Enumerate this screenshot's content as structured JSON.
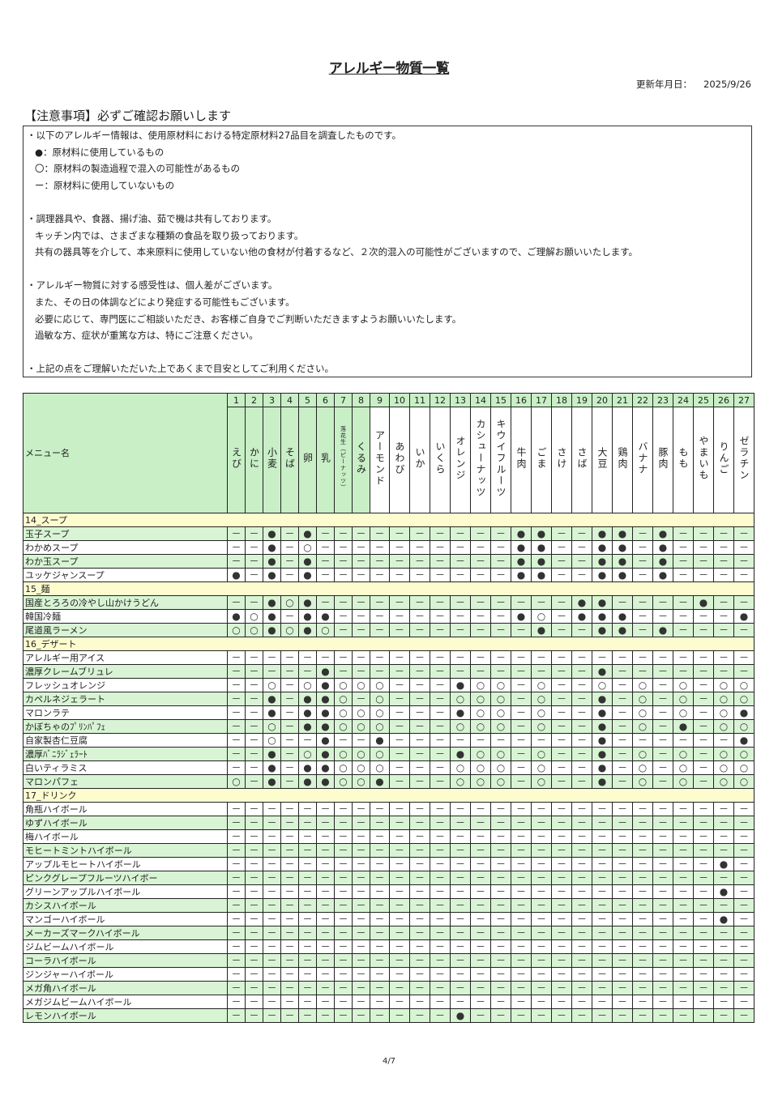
{
  "title": "アレルギー物質一覧",
  "updated_label": "更新年月日：",
  "updated_date": "2025/9/26",
  "notice_heading": "【注意事項】必ずご確認お願いします",
  "notes": [
    {
      "text": "・以下のアレルギー情報は、使用原材料における特定原材料27品目を調査したものです。",
      "indent": false
    },
    {
      "text": "●：原材料に使用しているもの",
      "indent": true
    },
    {
      "text": "〇：原材料の製造過程で混入の可能性があるもの",
      "indent": true
    },
    {
      "text": "ー：原材料に使用していないもの",
      "indent": true
    },
    {
      "text": "",
      "indent": false
    },
    {
      "text": "・調理器具や、食器、揚げ油、茹で機は共有しております。",
      "indent": false
    },
    {
      "text": "キッチン内では、さまざまな種類の食品を取り扱っております。",
      "indent": true
    },
    {
      "text": "共有の器具等を介して、本来原料に使用していない他の食材が付着するなど、２次的混入の可能性がございますので、ご理解お願いいたします。",
      "indent": true
    },
    {
      "text": "",
      "indent": false
    },
    {
      "text": "・アレルギー物質に対する感受性は、個人差がございます。",
      "indent": false
    },
    {
      "text": "また、その日の体調などにより発症する可能性もございます。",
      "indent": true
    },
    {
      "text": "必要に応じて、専門医にご相談いただき、お客様ご自身でご判断いただきますようお願いいたします。",
      "indent": true
    },
    {
      "text": "過敏な方、症状が重篤な方は、特にご注意ください。",
      "indent": true
    },
    {
      "text": "",
      "indent": false
    },
    {
      "text": "・上記の点をご理解いただいた上であくまで目安としてご利用ください。",
      "indent": false
    }
  ],
  "table": {
    "menu_header": "メニュー名",
    "allergens": [
      {
        "no": "1",
        "name": "えび"
      },
      {
        "no": "2",
        "name": "かに"
      },
      {
        "no": "3",
        "name": "小麦"
      },
      {
        "no": "4",
        "name": "そば"
      },
      {
        "no": "5",
        "name": "卵"
      },
      {
        "no": "6",
        "name": "乳"
      },
      {
        "no": "7",
        "name": "落花生（ピーナッツ）"
      },
      {
        "no": "8",
        "name": "くるみ"
      },
      {
        "no": "9",
        "name": "アーモンド"
      },
      {
        "no": "10",
        "name": "あわび"
      },
      {
        "no": "11",
        "name": "いか"
      },
      {
        "no": "12",
        "name": "いくら"
      },
      {
        "no": "13",
        "name": "オレンジ"
      },
      {
        "no": "14",
        "name": "カシューナッツ"
      },
      {
        "no": "15",
        "name": "キウイフルーツ"
      },
      {
        "no": "16",
        "name": "牛肉"
      },
      {
        "no": "17",
        "name": "ごま"
      },
      {
        "no": "18",
        "name": "さけ"
      },
      {
        "no": "19",
        "name": "さば"
      },
      {
        "no": "20",
        "name": "大豆"
      },
      {
        "no": "21",
        "name": "鶏肉"
      },
      {
        "no": "22",
        "name": "バナナ"
      },
      {
        "no": "23",
        "name": "豚肉"
      },
      {
        "no": "24",
        "name": "もも"
      },
      {
        "no": "25",
        "name": "やまいも"
      },
      {
        "no": "26",
        "name": "りんご"
      },
      {
        "no": "27",
        "name": "ゼラチン"
      }
    ],
    "sections": [
      {
        "name": "14_スープ",
        "items": [
          {
            "name": "玉子スープ",
            "marks": "－－●－●－－－－－－－－－－●●－－●●－●－－－－"
          },
          {
            "name": "わかめスープ",
            "marks": "－－●－○－－－－－－－－－－●●－－●●－●－－－－"
          },
          {
            "name": "わか玉スープ",
            "marks": "－－●－●－－－－－－－－－－●●－－●●－●－－－－"
          },
          {
            "name": "ユッケジャンスープ",
            "marks": "●－●－●－－－－－－－－－－●●－－●●－●－－－－"
          }
        ]
      },
      {
        "name": "15_麺",
        "items": [
          {
            "name": "国産とろろの冷やし山かけうどん",
            "marks": "－－●○●－－－－－－－－－－－－－●●－－－－●－－"
          },
          {
            "name": "韓国冷麺",
            "marks": "●○●－●●－－－－－－－－－●○－●●●－－－－－●"
          },
          {
            "name": "尾道風ラーメン",
            "marks": "○○●○●○－－－－－－－－－－●－－●●－●－－－－"
          }
        ]
      },
      {
        "name": "16_デザート",
        "items": [
          {
            "name": "アレルギー用アイス",
            "marks": "－－－－－－－－－－－－－－－－－－－－－－－－－－－"
          },
          {
            "name": "濃厚クレームブリュレ",
            "marks": "－－－－－●－－－－－－－－－－－－－●－－－－－－－"
          },
          {
            "name": "フレッシュオレンジ",
            "marks": "－－○－○●○○○－－－●○○－○－－○－○－○－○○"
          },
          {
            "name": "カペルネジェラート",
            "marks": "－－●－●●○－○－－－○○○－○－－●－○－○－○○"
          },
          {
            "name": "マロンラテ",
            "marks": "－－●－●●○○○－－－●○○－○－－●－○－○－○●"
          },
          {
            "name": "かぼちゃのﾌﾟﾘﾝﾊﾟﾌｪ",
            "marks": "－－○－●●○○○－－－○○○－○－－●－○－●－○○"
          },
          {
            "name": "自家製杏仁豆腐",
            "marks": "－－○－－●－－●－－－－－－－－－－●－－－－－－●"
          },
          {
            "name": "濃厚ﾊﾞﾆﾗｼﾞｪﾗｰﾄ",
            "marks": "－－●－○●○○○－－－●○○－○－－●－○－○－○○"
          },
          {
            "name": "白いティラミス",
            "marks": "－－●－●●○○○－－－○○○－○－－●－○－○－○○"
          },
          {
            "name": "マロンパフェ",
            "marks": "○－●－●●○○●－－－○○○－○－－●－○－○－○○"
          }
        ]
      },
      {
        "name": "17_ドリンク",
        "items": [
          {
            "name": "角瓶ハイボール",
            "marks": "－－－－－－－－－－－－－－－－－－－－－－－－－－－"
          },
          {
            "name": "ゆずハイボール",
            "marks": "－－－－－－－－－－－－－－－－－－－－－－－－－－－"
          },
          {
            "name": "梅ハイボール",
            "marks": "－－－－－－－－－－－－－－－－－－－－－－－－－－－"
          },
          {
            "name": "モヒートミントハイボール",
            "marks": "－－－－－－－－－－－－－－－－－－－－－－－－－－－"
          },
          {
            "name": "アップルモヒートハイボール",
            "marks": "－－－－－－－－－－－－－－－－－－－－－－－－－●－"
          },
          {
            "name": "ピンクグレープフルーツハイボー",
            "marks": "－－－－－－－－－－－－－－－－－－－－－－－－－－－"
          },
          {
            "name": "グリーンアップルハイボール",
            "marks": "－－－－－－－－－－－－－－－－－－－－－－－－－●－"
          },
          {
            "name": "カシスハイボール",
            "marks": "－－－－－－－－－－－－－－－－－－－－－－－－－－－"
          },
          {
            "name": "マンゴーハイボール",
            "marks": "－－－－－－－－－－－－－－－－－－－－－－－－－●－"
          },
          {
            "name": "メーカーズマークハイボール",
            "marks": "－－－－－－－－－－－－－－－－－－－－－－－－－－－"
          },
          {
            "name": "ジムビームハイボール",
            "marks": "－－－－－－－－－－－－－－－－－－－－－－－－－－－"
          },
          {
            "name": "コーラハイボール",
            "marks": "－－－－－－－－－－－－－－－－－－－－－－－－－－－"
          },
          {
            "name": "ジンジャーハイボール",
            "marks": "－－－－－－－－－－－－－－－－－－－－－－－－－－－"
          },
          {
            "name": "メガ角ハイボール",
            "marks": "－－－－－－－－－－－－－－－－－－－－－－－－－－－"
          },
          {
            "name": "メガジムビームハイボール",
            "marks": "－－－－－－－－－－－－－－－－－－－－－－－－－－－"
          },
          {
            "name": "レモンハイボール",
            "marks": "－－－－－－－－－－－－●－－－－－－－－－－－－－－"
          }
        ]
      }
    ]
  },
  "page_number": "4/7",
  "colors": {
    "header_green": "#c8efc6",
    "row_green": "#d8f4d4",
    "section_yellow": "#fdfccf"
  }
}
